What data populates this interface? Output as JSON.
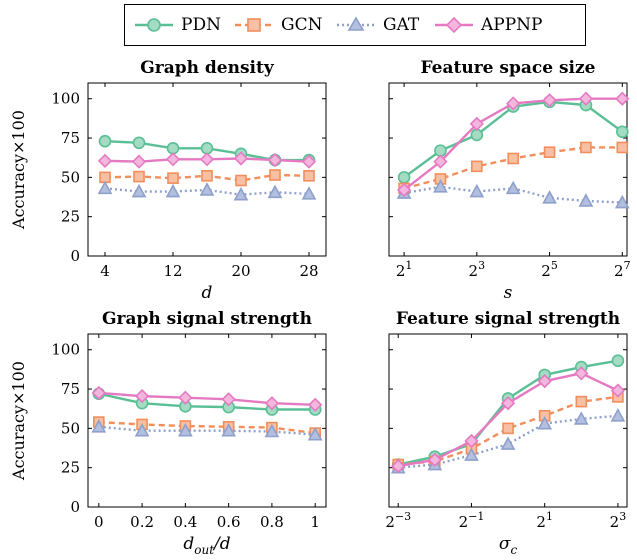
{
  "legend": [
    {
      "name": "PDN",
      "color": "#5bbf95",
      "marker": "circle",
      "dash": "solid"
    },
    {
      "name": "GCN",
      "color": "#f28e5c",
      "marker": "square",
      "dash": "dashed"
    },
    {
      "name": "GAT",
      "color": "#8ea0cb",
      "marker": "triangle",
      "dash": "dotted"
    },
    {
      "name": "APPNP",
      "color": "#e57ac3",
      "marker": "diamond",
      "dash": "solid"
    }
  ],
  "chart_data": [
    {
      "type": "line",
      "title": "Graph density",
      "xlabel": "d",
      "ylabel": "Accuracy×100",
      "xscale": "linear",
      "xlim": [
        2,
        30
      ],
      "ylim": [
        0,
        110
      ],
      "xticks": [
        4,
        12,
        20,
        28
      ],
      "xtick_labels": [
        "4",
        "12",
        "20",
        "28"
      ],
      "yticks": [
        0,
        25,
        50,
        75,
        100
      ],
      "ytick_labels": [
        "0",
        "25",
        "50",
        "75",
        "100"
      ],
      "x": [
        4,
        8,
        12,
        16,
        20,
        24,
        28
      ],
      "series": [
        {
          "name": "PDN",
          "values": [
            73,
            72,
            68.5,
            68.5,
            65,
            61,
            61
          ]
        },
        {
          "name": "GCN",
          "values": [
            50,
            50.5,
            49.5,
            51,
            48,
            51.5,
            51
          ]
        },
        {
          "name": "GAT",
          "values": [
            43,
            41,
            41,
            42,
            39,
            40.5,
            39.5
          ]
        },
        {
          "name": "APPNP",
          "values": [
            60.5,
            60,
            61.5,
            61.5,
            62,
            61,
            60
          ]
        }
      ]
    },
    {
      "type": "line",
      "title": "Feature space size",
      "xlabel": "s",
      "ylabel": "",
      "xscale": "log2",
      "xlim": [
        1.5,
        140
      ],
      "ylim": [
        0,
        110
      ],
      "xticks": [
        2,
        8,
        32,
        128
      ],
      "xtick_labels": [
        [
          "2",
          "1"
        ],
        [
          "2",
          "3"
        ],
        [
          "2",
          "5"
        ],
        [
          "2",
          "7"
        ]
      ],
      "yticks": [
        0,
        25,
        50,
        75,
        100
      ],
      "ytick_labels": [
        "",
        "",
        "",
        "",
        ""
      ],
      "x": [
        2,
        4,
        8,
        16,
        32,
        64,
        128
      ],
      "series": [
        {
          "name": "PDN",
          "values": [
            50,
            67,
            77,
            95,
            98,
            96,
            79
          ]
        },
        {
          "name": "GCN",
          "values": [
            43,
            49,
            57,
            62,
            66,
            69,
            69
          ]
        },
        {
          "name": "GAT",
          "values": [
            40,
            44,
            41,
            43,
            37,
            35,
            34
          ]
        },
        {
          "name": "APPNP",
          "values": [
            42,
            60,
            84,
            97,
            99,
            100,
            100
          ]
        }
      ]
    },
    {
      "type": "line",
      "title": "Graph signal strength",
      "xlabel": "d_out/d",
      "ylabel": "Accuracy×100",
      "xscale": "linear",
      "xlim": [
        -0.05,
        1.05
      ],
      "ylim": [
        0,
        110
      ],
      "xticks": [
        0,
        0.2,
        0.4,
        0.6,
        0.8,
        1
      ],
      "xtick_labels": [
        "0",
        "0.2",
        "0.4",
        "0.6",
        "0.8",
        "1"
      ],
      "yticks": [
        0,
        25,
        50,
        75,
        100
      ],
      "ytick_labels": [
        "0",
        "25",
        "50",
        "75",
        "100"
      ],
      "x": [
        0,
        0.2,
        0.4,
        0.6,
        0.8,
        1
      ],
      "series": [
        {
          "name": "PDN",
          "values": [
            72,
            66,
            64,
            63.5,
            62,
            62
          ]
        },
        {
          "name": "GCN",
          "values": [
            54,
            52.5,
            51.5,
            51,
            50.5,
            47
          ]
        },
        {
          "name": "GAT",
          "values": [
            51,
            48.5,
            48.5,
            48.5,
            48,
            46
          ]
        },
        {
          "name": "APPNP",
          "values": [
            72.5,
            70.5,
            69.5,
            68.5,
            66,
            65
          ]
        }
      ]
    },
    {
      "type": "line",
      "title": "Feature signal strength",
      "xlabel": "σ_c",
      "ylabel": "",
      "xscale": "log2",
      "xlim": [
        0.105,
        9.5
      ],
      "ylim": [
        0,
        110
      ],
      "xticks": [
        0.125,
        0.5,
        2,
        8
      ],
      "xtick_labels": [
        [
          "2",
          "−3"
        ],
        [
          "2",
          "−1"
        ],
        [
          "2",
          "1"
        ],
        [
          "2",
          "3"
        ]
      ],
      "yticks": [
        0,
        25,
        50,
        75,
        100
      ],
      "ytick_labels": [
        "",
        "",
        "",
        "",
        ""
      ],
      "x": [
        0.125,
        0.25,
        0.5,
        1,
        2,
        4,
        8
      ],
      "series": [
        {
          "name": "PDN",
          "values": [
            27,
            32,
            40,
            69,
            84,
            89,
            93
          ]
        },
        {
          "name": "GCN",
          "values": [
            27,
            29,
            37,
            50,
            58,
            67,
            70
          ]
        },
        {
          "name": "GAT",
          "values": [
            25,
            27,
            33,
            40,
            53,
            56,
            58
          ]
        },
        {
          "name": "APPNP",
          "values": [
            26,
            30,
            42,
            66,
            80,
            85,
            74
          ]
        }
      ]
    }
  ]
}
